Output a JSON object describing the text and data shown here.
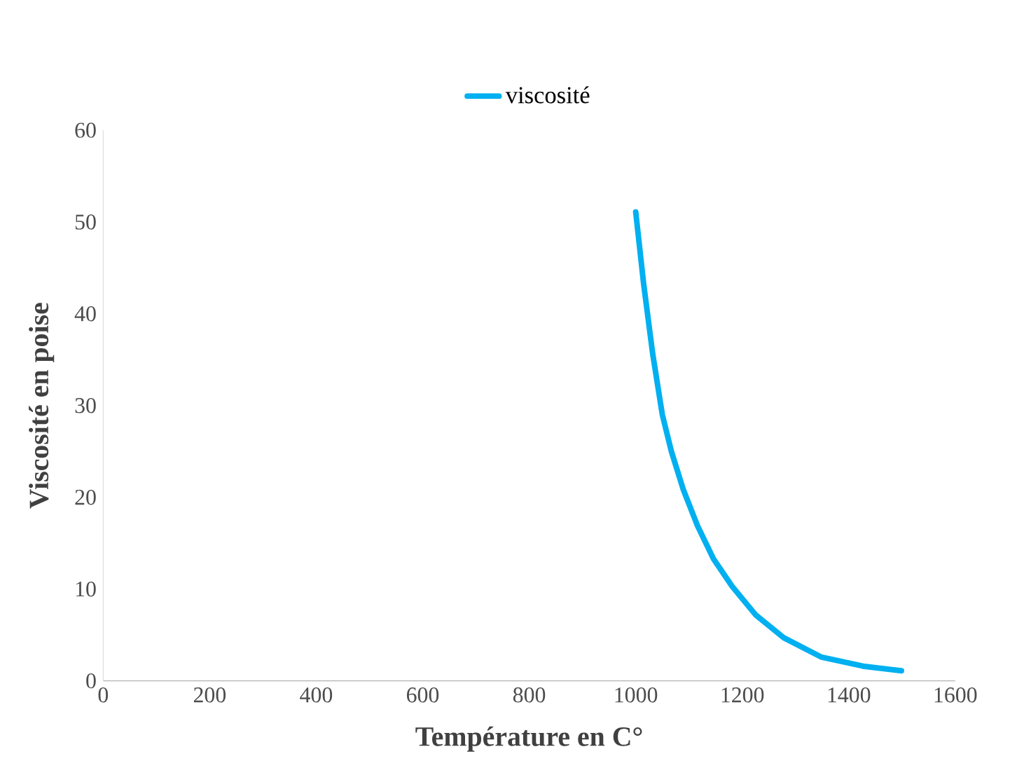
{
  "chart_data": {
    "type": "line",
    "xlabel": "Température  en C°",
    "ylabel": "Viscosité en poise",
    "xlim": [
      0,
      1600
    ],
    "xticks": [
      0,
      200,
      400,
      600,
      800,
      1000,
      1200,
      1400,
      1600
    ],
    "ylim": [
      0,
      60
    ],
    "yticks": [
      0,
      10,
      20,
      30,
      40,
      50,
      60
    ],
    "legend": "top",
    "grid": false,
    "marker": "none",
    "line_style": "solid",
    "series": [
      {
        "name": "viscosité",
        "color": "#00b0f0",
        "x": [
          1000,
          1015,
          1032,
          1050,
          1067,
          1089,
          1116,
          1146,
          1181,
          1225,
          1278,
          1348,
          1427,
          1499
        ],
        "values": [
          51.1,
          43.2,
          35.6,
          29.0,
          25.0,
          20.9,
          16.9,
          13.3,
          10.3,
          7.2,
          4.7,
          2.6,
          1.6,
          1.1
        ]
      }
    ]
  }
}
